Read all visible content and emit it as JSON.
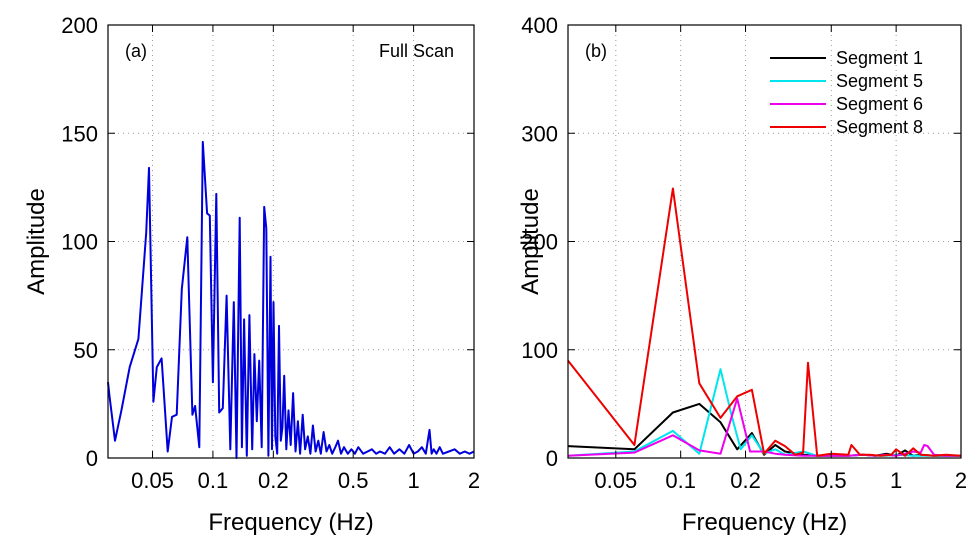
{
  "chart_data": [
    {
      "type": "line",
      "panel_label": "(a)",
      "annotation": "Full Scan",
      "xlabel": "Frequency (Hz)",
      "ylabel": "Amplitude",
      "xscale": "log",
      "xlim": [
        0.03,
        2
      ],
      "ylim": [
        0,
        200
      ],
      "xticks": [
        0.05,
        0.1,
        0.2,
        0.5,
        1,
        2
      ],
      "xtick_labels": [
        "0.05",
        "0.1",
        "0.2",
        "0.5",
        "1",
        "2"
      ],
      "yticks": [
        0,
        50,
        100,
        150,
        200
      ],
      "ytick_labels": [
        "0",
        "50",
        "100",
        "150",
        "200"
      ],
      "grid": true,
      "series": [
        {
          "color": "#0000dd",
          "x": [
            0.03,
            0.0305,
            0.0325,
            0.035,
            0.0385,
            0.0425,
            0.0465,
            0.048,
            0.0505,
            0.0525,
            0.0555,
            0.0595,
            0.0625,
            0.066,
            0.07,
            0.0745,
            0.079,
            0.0815,
            0.0855,
            0.089,
            0.0935,
            0.0965,
            0.1,
            0.104,
            0.1075,
            0.112,
            0.117,
            0.122,
            0.127,
            0.131,
            0.136,
            0.1395,
            0.143,
            0.1475,
            0.152,
            0.157,
            0.161,
            0.1655,
            0.17,
            0.175,
            0.18,
            0.1845,
            0.189,
            0.1935,
            0.197,
            0.2005,
            0.2045,
            0.209,
            0.2135,
            0.218,
            0.222,
            0.2265,
            0.232,
            0.238,
            0.244,
            0.251,
            0.258,
            0.265,
            0.272,
            0.28,
            0.288,
            0.297,
            0.306,
            0.315,
            0.325,
            0.335,
            0.345,
            0.356,
            0.368,
            0.38,
            0.393,
            0.407,
            0.42,
            0.435,
            0.45,
            0.47,
            0.49,
            0.51,
            0.53,
            0.56,
            0.59,
            0.62,
            0.65,
            0.68,
            0.72,
            0.76,
            0.8,
            0.85,
            0.9,
            0.95,
            1.0,
            1.05,
            1.1,
            1.15,
            1.2,
            1.23,
            1.26,
            1.3,
            1.35,
            1.4,
            1.5,
            1.6,
            1.7,
            1.8,
            1.9,
            2.0
          ],
          "y": [
            35,
            29,
            8,
            22,
            42,
            55,
            104,
            134,
            26,
            42,
            46,
            3,
            19,
            20,
            78,
            102,
            20,
            24,
            5,
            146,
            113,
            112,
            35,
            122,
            21,
            23,
            75,
            4,
            72,
            0,
            111,
            5,
            64,
            1,
            66,
            4,
            48,
            17,
            45,
            5,
            116,
            106,
            1,
            93,
            4,
            72,
            10,
            2,
            61,
            8,
            14,
            38,
            4,
            22,
            6,
            30,
            3,
            17,
            2,
            20,
            4,
            10,
            2,
            15,
            3,
            8,
            2,
            12,
            3,
            6,
            2,
            5,
            8,
            2,
            5,
            2,
            4,
            2,
            5,
            2,
            3,
            4,
            2,
            3,
            2,
            5,
            2,
            4,
            2,
            6,
            2,
            3,
            5,
            2,
            13,
            2,
            4,
            2,
            5,
            2,
            3,
            4,
            2,
            3,
            2,
            3
          ]
        }
      ]
    },
    {
      "type": "line",
      "panel_label": "(b)",
      "xlabel": "Frequency (Hz)",
      "ylabel": "Amplitude",
      "xscale": "log",
      "xlim": [
        0.03,
        2
      ],
      "ylim": [
        0,
        400
      ],
      "xticks": [
        0.05,
        0.1,
        0.2,
        0.5,
        1,
        2
      ],
      "xtick_labels": [
        "0.05",
        "0.1",
        "0.2",
        "0.5",
        "1",
        "2"
      ],
      "yticks": [
        0,
        100,
        200,
        300,
        400
      ],
      "ytick_labels": [
        "0",
        "100",
        "200",
        "300",
        "400"
      ],
      "grid": true,
      "legend": "top-right",
      "series": [
        {
          "name": "Segment 1",
          "color": "#000000",
          "x": [
            0.03,
            0.061,
            0.092,
            0.122,
            0.153,
            0.183,
            0.214,
            0.244,
            0.275,
            0.305,
            0.37,
            0.43,
            0.5,
            0.6,
            0.7,
            0.8,
            0.9,
            1.0,
            1.1,
            1.2,
            1.3,
            1.5,
            1.7,
            2.0
          ],
          "y": [
            11,
            8,
            42,
            50,
            33,
            8,
            23,
            3,
            12,
            6,
            3,
            2,
            2,
            2,
            3,
            2,
            4,
            2,
            7,
            2,
            3,
            2,
            2,
            2
          ]
        },
        {
          "name": "Segment 5",
          "color": "#00e5ee",
          "x": [
            0.03,
            0.061,
            0.092,
            0.122,
            0.153,
            0.172,
            0.19,
            0.214,
            0.244,
            0.275,
            0.305,
            0.37,
            0.43,
            0.5,
            0.6,
            0.7,
            0.8,
            0.9,
            1.0,
            1.2,
            1.5,
            2.0
          ],
          "y": [
            2,
            6,
            25,
            4,
            82,
            40,
            8,
            21,
            4,
            8,
            3,
            6,
            2,
            3,
            2,
            3,
            2,
            2,
            3,
            2,
            2,
            2
          ]
        },
        {
          "name": "Segment 6",
          "color": "#ee00ee",
          "x": [
            0.03,
            0.061,
            0.092,
            0.122,
            0.153,
            0.183,
            0.21,
            0.244,
            0.275,
            0.305,
            0.37,
            0.43,
            0.5,
            0.6,
            0.7,
            0.8,
            0.9,
            1.0,
            1.1,
            1.2,
            1.3,
            1.35,
            1.4,
            1.5,
            1.7,
            2.0
          ],
          "y": [
            2,
            5,
            21,
            7,
            4,
            55,
            6,
            6,
            4,
            3,
            2,
            2,
            2,
            2,
            3,
            2,
            3,
            2,
            4,
            6,
            5,
            12,
            11,
            3,
            2,
            2
          ]
        },
        {
          "name": "Segment 8",
          "color": "#ee0000",
          "x": [
            0.03,
            0.061,
            0.092,
            0.122,
            0.153,
            0.183,
            0.214,
            0.244,
            0.275,
            0.305,
            0.34,
            0.37,
            0.39,
            0.43,
            0.5,
            0.6,
            0.62,
            0.68,
            0.75,
            0.85,
            0.95,
            1.0,
            1.1,
            1.2,
            1.3,
            1.5,
            1.7,
            2.0
          ],
          "y": [
            90,
            12,
            249,
            69,
            37,
            57,
            63,
            4,
            16,
            11,
            3,
            5,
            88,
            2,
            4,
            3,
            12,
            3,
            3,
            2,
            3,
            8,
            2,
            9,
            3,
            2,
            3,
            2
          ]
        }
      ]
    }
  ]
}
